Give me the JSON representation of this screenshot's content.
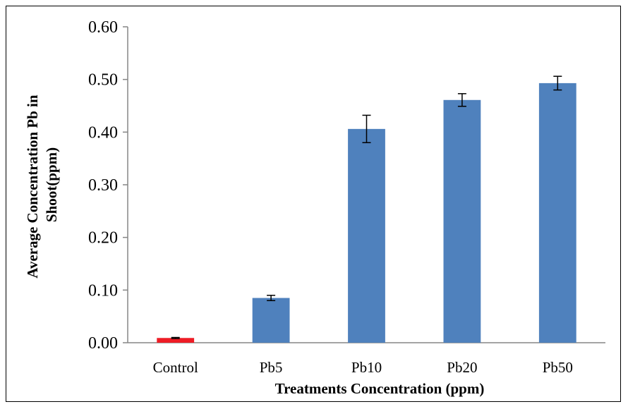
{
  "chart_data": {
    "type": "bar",
    "categories": [
      "Control",
      "Pb5",
      "Pb10",
      "Pb20",
      "Pb50"
    ],
    "values": [
      0.009,
      0.085,
      0.406,
      0.461,
      0.493
    ],
    "error": [
      0.001,
      0.005,
      0.026,
      0.012,
      0.013
    ],
    "colors": [
      "#ee1c25",
      "#4f81bd",
      "#4f81bd",
      "#4f81bd",
      "#4f81bd"
    ],
    "ylim": [
      0,
      0.6
    ],
    "yticks": [
      "0.00",
      "0.10",
      "0.20",
      "0.30",
      "0.40",
      "0.50",
      "0.60"
    ],
    "ytick_values": [
      0,
      0.1,
      0.2,
      0.3,
      0.4,
      0.5,
      0.6
    ],
    "xlabel": "Treatments Concentration (ppm)",
    "ylabel_lines": [
      "Average Concentration Pb in",
      "Shoot(ppm)"
    ],
    "grid": false,
    "legend": "none"
  }
}
